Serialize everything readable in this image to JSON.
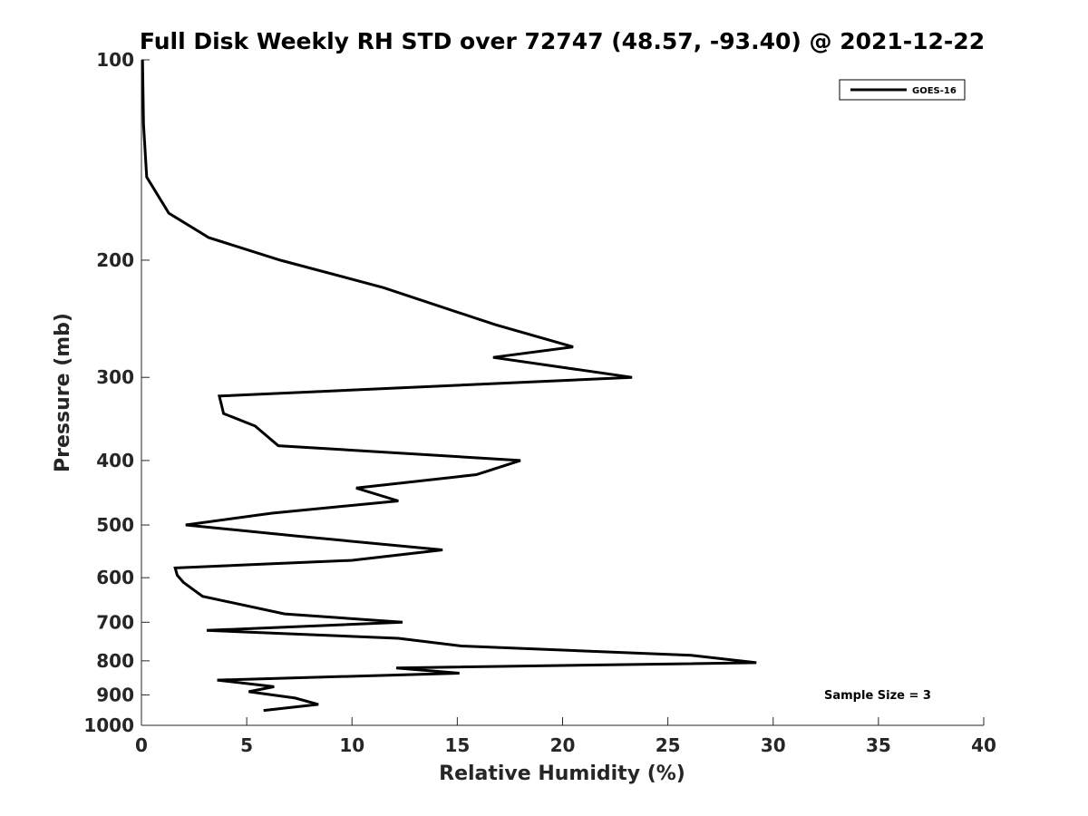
{
  "chart_data": {
    "type": "line",
    "title": "Full Disk Weekly RH STD over 72747 (48.57, -93.40) @ 2021-12-22",
    "xlabel": "Relative Humidity (%)",
    "ylabel": "Pressure (mb)",
    "xlim": [
      0,
      40
    ],
    "ylim": [
      100,
      1000
    ],
    "y_scale": "log",
    "y_reversed": true,
    "xticks": [
      0,
      5,
      10,
      15,
      20,
      25,
      30,
      35,
      40
    ],
    "yticks": [
      100,
      200,
      300,
      400,
      500,
      600,
      700,
      800,
      900,
      1000
    ],
    "grid": false,
    "legend_position": "top-right",
    "annotation": "Sample Size = 3",
    "series": [
      {
        "name": "GOES-16",
        "color": "#000000",
        "points": [
          [
            0.05,
            100
          ],
          [
            0.1,
            125
          ],
          [
            0.25,
            150
          ],
          [
            1.3,
            170
          ],
          [
            3.2,
            185
          ],
          [
            6.6,
            200
          ],
          [
            11.5,
            220
          ],
          [
            16.8,
            250
          ],
          [
            20.5,
            270
          ],
          [
            16.7,
            280
          ],
          [
            23.3,
            300
          ],
          [
            3.7,
            320
          ],
          [
            3.9,
            340
          ],
          [
            5.4,
            355
          ],
          [
            6.5,
            380
          ],
          [
            18.0,
            400
          ],
          [
            15.9,
            420
          ],
          [
            10.2,
            440
          ],
          [
            12.2,
            460
          ],
          [
            6.2,
            480
          ],
          [
            2.1,
            500
          ],
          [
            7.5,
            520
          ],
          [
            14.3,
            545
          ],
          [
            10.0,
            565
          ],
          [
            1.6,
            580
          ],
          [
            1.7,
            595
          ],
          [
            2.0,
            610
          ],
          [
            2.9,
            640
          ],
          [
            6.8,
            680
          ],
          [
            12.4,
            700
          ],
          [
            3.1,
            720
          ],
          [
            12.2,
            740
          ],
          [
            15.2,
            760
          ],
          [
            26.1,
            785
          ],
          [
            29.2,
            805
          ],
          [
            12.1,
            820
          ],
          [
            15.1,
            835
          ],
          [
            3.6,
            855
          ],
          [
            6.3,
            875
          ],
          [
            5.1,
            890
          ],
          [
            7.3,
            910
          ],
          [
            8.4,
            930
          ],
          [
            5.8,
            950
          ]
        ]
      }
    ]
  }
}
